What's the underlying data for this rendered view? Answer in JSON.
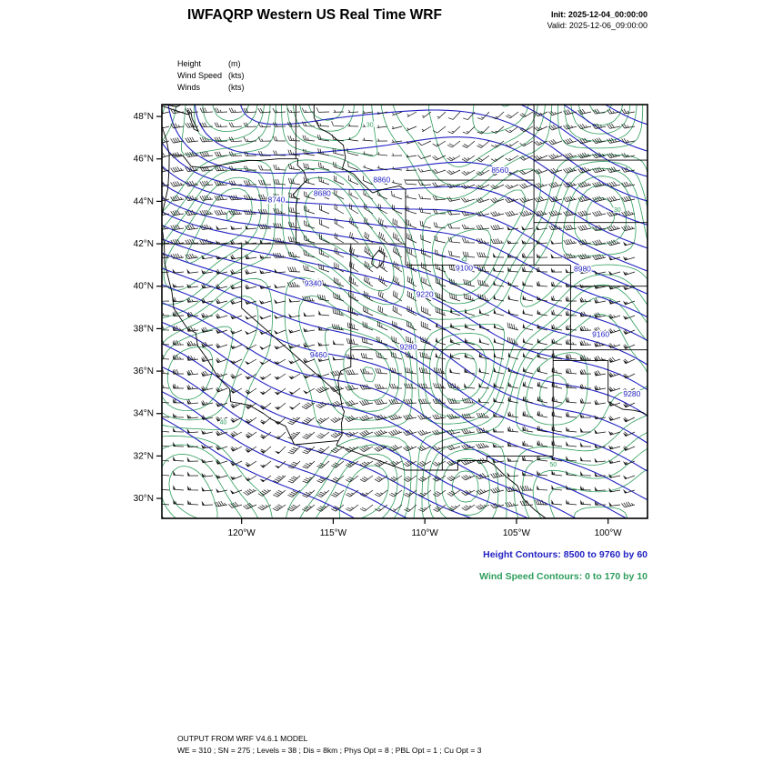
{
  "title": "IWFAQRP Western US Real Time WRF",
  "header": {
    "init": "Init: 2025-12-04_00:00:00",
    "valid": "Valid: 2025-12-06_09:00:00"
  },
  "legend": {
    "rows": [
      {
        "name": "Height",
        "unit": "(m)"
      },
      {
        "name": "Wind Speed",
        "unit": "(kts)"
      },
      {
        "name": "Winds",
        "unit": "(kts)"
      }
    ]
  },
  "captions": {
    "height": "Height Contours: 8500 to 9760 by 60",
    "wind": "Wind Speed Contours: 0 to 170 by 10"
  },
  "footer": {
    "line1": "OUTPUT FROM WRF V4.6.1 MODEL",
    "line2": "WE = 310 ; SN = 275 ; Levels = 38 ; Dis = 8km ; Phys Opt = 8 ; PBL Opt = 1 ; Cu Opt = 3"
  },
  "colors": {
    "height_contour": "#2222c2",
    "wind_contour": "#2e9e5c",
    "barbs": "#111111",
    "map_outline": "#000000"
  },
  "chart_data": {
    "type": "contour-map",
    "title": "IWFAQRP Western US Real Time WRF",
    "region": "Western US",
    "extent": {
      "lon_min": -124.35,
      "lon_max": -97.85,
      "lat_min": 29.06,
      "lat_max": 48.56
    },
    "lat_ticks": [
      {
        "label": "48°N",
        "value": 48
      },
      {
        "label": "46°N",
        "value": 46
      },
      {
        "label": "44°N",
        "value": 44
      },
      {
        "label": "42°N",
        "value": 42
      },
      {
        "label": "40°N",
        "value": 40
      },
      {
        "label": "38°N",
        "value": 38
      },
      {
        "label": "36°N",
        "value": 36
      },
      {
        "label": "34°N",
        "value": 34
      },
      {
        "label": "32°N",
        "value": 32
      },
      {
        "label": "30°N",
        "value": 30
      }
    ],
    "lon_ticks": [
      {
        "label": "120°W",
        "value": -120
      },
      {
        "label": "115°W",
        "value": -115
      },
      {
        "label": "110°W",
        "value": -110
      },
      {
        "label": "105°W",
        "value": -105
      },
      {
        "label": "100°W",
        "value": -100
      }
    ],
    "height_contours": {
      "start": 8500,
      "end": 9760,
      "interval": 60,
      "units": "m"
    },
    "wind_speed_contours": {
      "start": 0,
      "end": 170,
      "interval": 10,
      "units": "kts"
    },
    "height_labels": [
      {
        "value": 8740,
        "lon": -118.1,
        "lat": 43.95
      },
      {
        "value": 8680,
        "lon": -115.6,
        "lat": 44.25
      },
      {
        "value": 8860,
        "lon": -112.35,
        "lat": 44.9
      },
      {
        "value": 8560,
        "lon": -105.9,
        "lat": 45.35
      },
      {
        "value": 9100,
        "lon": -107.85,
        "lat": 40.73
      },
      {
        "value": 8980,
        "lon": -101.4,
        "lat": 40.7
      },
      {
        "value": 9340,
        "lon": -116.1,
        "lat": 40.0
      },
      {
        "value": 9220,
        "lon": -110.0,
        "lat": 39.5
      },
      {
        "value": 9280,
        "lon": -110.9,
        "lat": 37.0
      },
      {
        "value": 9160,
        "lon": -100.4,
        "lat": 37.6
      },
      {
        "value": 9280,
        "lon": -98.7,
        "lat": 34.8
      },
      {
        "value": 9460,
        "lon": -115.8,
        "lat": 36.65
      }
    ],
    "wind_speed_labels": [
      {
        "value": 30,
        "lon": -113.0,
        "lat": 47.5
      },
      {
        "value": 40,
        "lon": -121.0,
        "lat": 33.5
      },
      {
        "value": 50,
        "lon": -103.0,
        "lat": 31.5
      },
      {
        "value": 30,
        "lon": -99.5,
        "lat": 43.5
      }
    ],
    "winds": {
      "type": "barbs",
      "units": "kts",
      "full_barb": 10,
      "half_barb": 5,
      "pennant": 50
    }
  }
}
